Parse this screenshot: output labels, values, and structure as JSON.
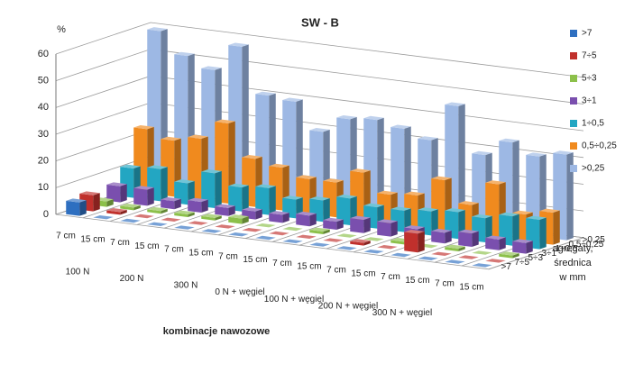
{
  "chart_data": {
    "type": "bar3d",
    "title": "SW - B",
    "y_label": "%",
    "x_label": "kombinacje nawozowe",
    "z_label_lines": [
      "agregaty,",
      "średnica",
      "w mm"
    ],
    "categories": [
      "7 cm",
      "15 cm",
      "7 cm",
      "15 cm",
      "7 cm",
      "15 cm",
      "7 cm",
      "15 cm",
      "7 cm",
      "15 cm",
      "7 cm",
      "15 cm",
      "7 cm",
      "15 cm",
      "7 cm",
      "15 cm"
    ],
    "groups": [
      "100 N",
      "200 N",
      "300 N",
      "0 N + węgiel",
      "100 N + węgiel",
      "200 N + węgiel",
      "300 N + węgiel"
    ],
    "series": [
      {
        "name": ">7",
        "color": "#2e6fc0",
        "values": [
          5,
          0,
          0,
          0,
          0,
          0,
          0,
          0,
          0,
          0,
          0,
          0,
          0,
          0,
          0,
          0
        ]
      },
      {
        "name": "7÷5",
        "color": "#c0302c",
        "values": [
          6,
          1,
          0,
          0,
          0,
          0,
          0,
          0,
          0,
          0,
          1,
          0,
          7,
          0,
          0,
          0
        ]
      },
      {
        "name": "5÷3",
        "color": "#8cc04a",
        "values": [
          2,
          1,
          1,
          1,
          1,
          2,
          0,
          0,
          1,
          0,
          0,
          1,
          0,
          1,
          0,
          1
        ]
      },
      {
        "name": "3÷1",
        "color": "#7a4fae",
        "values": [
          6,
          6,
          3,
          4,
          3,
          3,
          3,
          4,
          3,
          5,
          5,
          4,
          4,
          5,
          4,
          4
        ]
      },
      {
        "name": "1÷0,5",
        "color": "#23a6c2",
        "values": [
          11,
          12,
          8,
          13,
          9,
          10,
          7,
          8,
          10,
          8,
          8,
          9,
          10,
          9,
          11,
          11
        ]
      },
      {
        "name": "0,5÷0,25",
        "color": "#f08a1e",
        "values": [
          24,
          21,
          23,
          30,
          18,
          16,
          13,
          13,
          18,
          11,
          12,
          19,
          11,
          20,
          10,
          12
        ]
      },
      {
        "name": ">0,25",
        "color": "#9db8e4",
        "values": [
          59,
          51,
          47,
          57,
          40,
          39,
          29,
          35,
          36,
          34,
          31,
          45,
          28,
          34,
          30,
          32
        ]
      }
    ],
    "ylim": [
      0,
      60
    ],
    "yticks": [
      0,
      10,
      20,
      30,
      40,
      50,
      60
    ],
    "grid": true
  }
}
